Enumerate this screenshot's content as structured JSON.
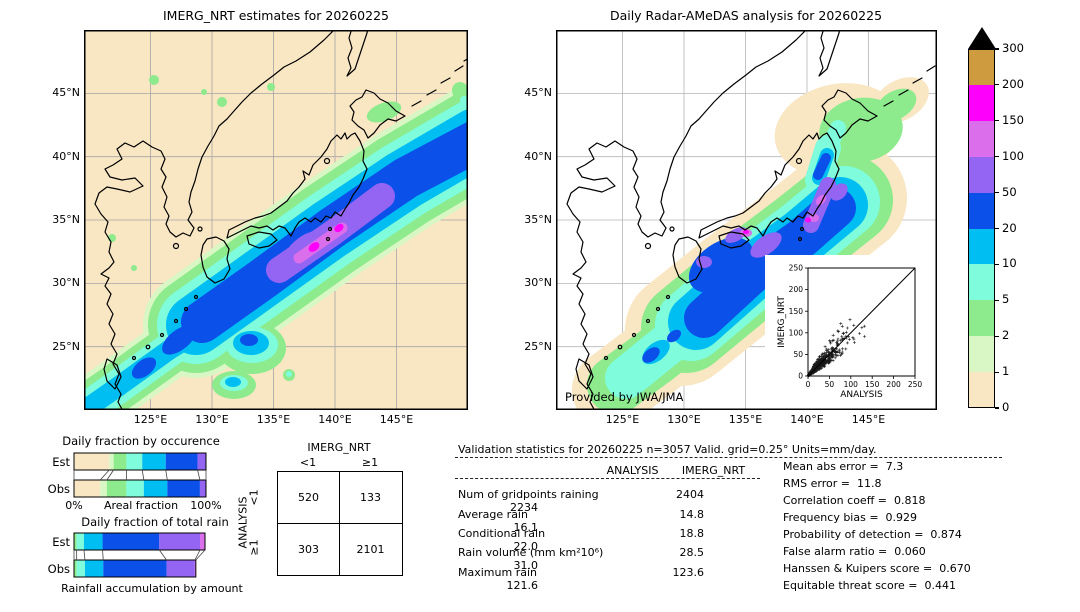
{
  "left_map": {
    "title": "IMERG_NRT estimates for 20260225",
    "lat_ticks": [
      "45°N",
      "40°N",
      "35°N",
      "30°N",
      "25°N"
    ],
    "lon_ticks": [
      "125°E",
      "130°E",
      "135°E",
      "140°E",
      "145°E"
    ]
  },
  "right_map": {
    "title": "Daily Radar-AMeDAS analysis for 20260225",
    "credit": "Provided by JWA/JMA",
    "lat_ticks": [
      "45°N",
      "40°N",
      "35°N",
      "30°N",
      "25°N"
    ],
    "lon_ticks": [
      "125°E",
      "130°E",
      "135°E",
      "140°E",
      "145°E"
    ]
  },
  "palette": {
    "units": "mm/day",
    "levels": [
      0,
      1,
      2,
      5,
      10,
      20,
      50,
      100,
      150,
      200,
      300
    ],
    "colors": [
      "#F9E6C3",
      "#D9F7C4",
      "#8DEB8D",
      "#7EFCDC",
      "#00BDF2",
      "#0B50E9",
      "#9465F2",
      "#DB6EEA",
      "#FC00FC",
      "#CE9C3E"
    ],
    "overflow_color": "#000000"
  },
  "chart_data": [
    {
      "id": "occurrence_fractions",
      "type": "bar",
      "orientation": "horizontal",
      "stacked": true,
      "title": "Daily fraction by occurence",
      "xlabel": "Areal fraction",
      "xticks": [
        "0%",
        "100%"
      ],
      "categories": [
        "Est",
        "Obs"
      ],
      "bins_mm_day": [
        "<1",
        "1-2",
        "2-5",
        "5-10",
        "10-20",
        "20-50",
        "50-100"
      ],
      "bin_colors": [
        "#F9E6C3",
        "#D9F7C4",
        "#8DEB8D",
        "#7EFCDC",
        "#00BDF2",
        "#0B50E9",
        "#9465F2"
      ],
      "series": [
        {
          "name": "Est",
          "values": [
            0.267,
            0.033,
            0.097,
            0.12,
            0.178,
            0.241,
            0.064
          ],
          "rel_length": 1.0
        },
        {
          "name": "Obs",
          "values": [
            0.198,
            0.051,
            0.148,
            0.132,
            0.178,
            0.247,
            0.046
          ],
          "rel_length": 1.0
        }
      ]
    },
    {
      "id": "total_rain_fractions",
      "type": "bar",
      "orientation": "horizontal",
      "stacked": true,
      "title": "Daily fraction of total rain",
      "footer": "Rainfall accumulation by amount",
      "categories": [
        "Est",
        "Obs"
      ],
      "bins_mm_day": [
        "2-5",
        "5-10",
        "10-20",
        "20-50",
        "50-100",
        "100-150"
      ],
      "bin_colors": [
        "#8DEB8D",
        "#7EFCDC",
        "#00BDF2",
        "#0B50E9",
        "#9465F2",
        "#DB6EEA"
      ],
      "series": [
        {
          "name": "Est",
          "values": [
            0.02,
            0.056,
            0.142,
            0.433,
            0.311,
            0.038
          ],
          "rel_length": 1.0
        },
        {
          "name": "Obs",
          "values": [
            0.022,
            0.068,
            0.15,
            0.52,
            0.232,
            0.008
          ],
          "rel_length": 0.93
        }
      ]
    },
    {
      "id": "contingency_table",
      "type": "table",
      "col_group": "IMERG_NRT",
      "row_group": "ANALYSIS",
      "col_labels": [
        "<1",
        "≥1"
      ],
      "row_labels": [
        "<1",
        "≥1"
      ],
      "values": [
        [
          520,
          133
        ],
        [
          303,
          2101
        ]
      ]
    },
    {
      "id": "validation_stats",
      "type": "table",
      "title": "Validation statistics for 20260225  n=3057 Valid. grid=0.25° Units=mm/day.",
      "columns": [
        "ANALYSIS",
        "IMERG_NRT"
      ],
      "rows": [
        {
          "label": "Num of gridpoints raining",
          "analysis": "2404",
          "imerg": "2234"
        },
        {
          "label": "Average rain",
          "analysis": "14.8",
          "imerg": "16.1"
        },
        {
          "label": "Conditional rain",
          "analysis": "18.8",
          "imerg": "22.0"
        },
        {
          "label": "Rain volume (mm km²10⁶)",
          "analysis": "28.5",
          "imerg": "31.0"
        },
        {
          "label": "Maximum rain",
          "analysis": "123.6",
          "imerg": "121.6"
        }
      ]
    },
    {
      "id": "skill_metrics",
      "type": "table",
      "rows": [
        {
          "label": "Mean abs error =",
          "value": "7.3"
        },
        {
          "label": "RMS error =",
          "value": "11.8"
        },
        {
          "label": "Correlation coeff =",
          "value": "0.818"
        },
        {
          "label": "Frequency bias =",
          "value": "0.929"
        },
        {
          "label": "Probability of detection =",
          "value": "0.874"
        },
        {
          "label": "False alarm ratio =",
          "value": "0.060"
        },
        {
          "label": "Hanssen & Kuipers score =",
          "value": "0.670"
        },
        {
          "label": "Equitable threat score =",
          "value": "0.441"
        }
      ]
    },
    {
      "id": "scatter_inset",
      "type": "scatter",
      "xlabel": "ANALYSIS",
      "ylabel": "IMERG_NRT",
      "xlim": [
        0,
        250
      ],
      "ylim": [
        0,
        250
      ],
      "xticks": [
        0,
        50,
        100,
        150,
        200,
        250
      ],
      "yticks": [
        0,
        50,
        100,
        150,
        200,
        250
      ],
      "identity_line": true,
      "n_points": 3057,
      "cluster_max_mm": 130,
      "marker": "+"
    }
  ]
}
